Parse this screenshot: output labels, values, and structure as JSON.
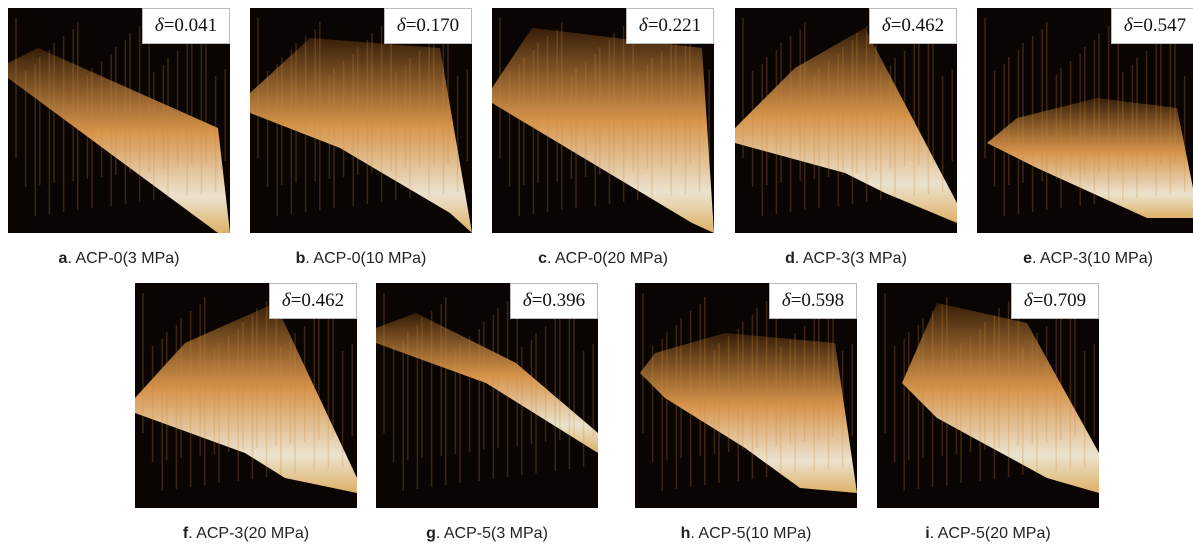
{
  "delta_symbol": "δ",
  "panels": [
    {
      "letter": "a",
      "caption": ". ACP-0(3 MPa)",
      "delta": "=0.041"
    },
    {
      "letter": "b",
      "caption": ". ACP-0(10 MPa)",
      "delta": "=0.170"
    },
    {
      "letter": "c",
      "caption": ". ACP-0(20 MPa)",
      "delta": "=0.221"
    },
    {
      "letter": "d",
      "caption": ". ACP-3(3 MPa)",
      "delta": "=0.462"
    },
    {
      "letter": "e",
      "caption": ". ACP-3(10 MPa)",
      "delta": "=0.547"
    },
    {
      "letter": "f",
      "caption": ". ACP-3(20 MPa)",
      "delta": "=0.462"
    },
    {
      "letter": "g",
      "caption": ". ACP-5(3 MPa)",
      "delta": "=0.396"
    },
    {
      "letter": "h",
      "caption": ". ACP-5(10 MPa)",
      "delta": "=0.598"
    },
    {
      "letter": "i",
      "caption": ". ACP-5(20 MPa)",
      "delta": "=0.709"
    }
  ]
}
